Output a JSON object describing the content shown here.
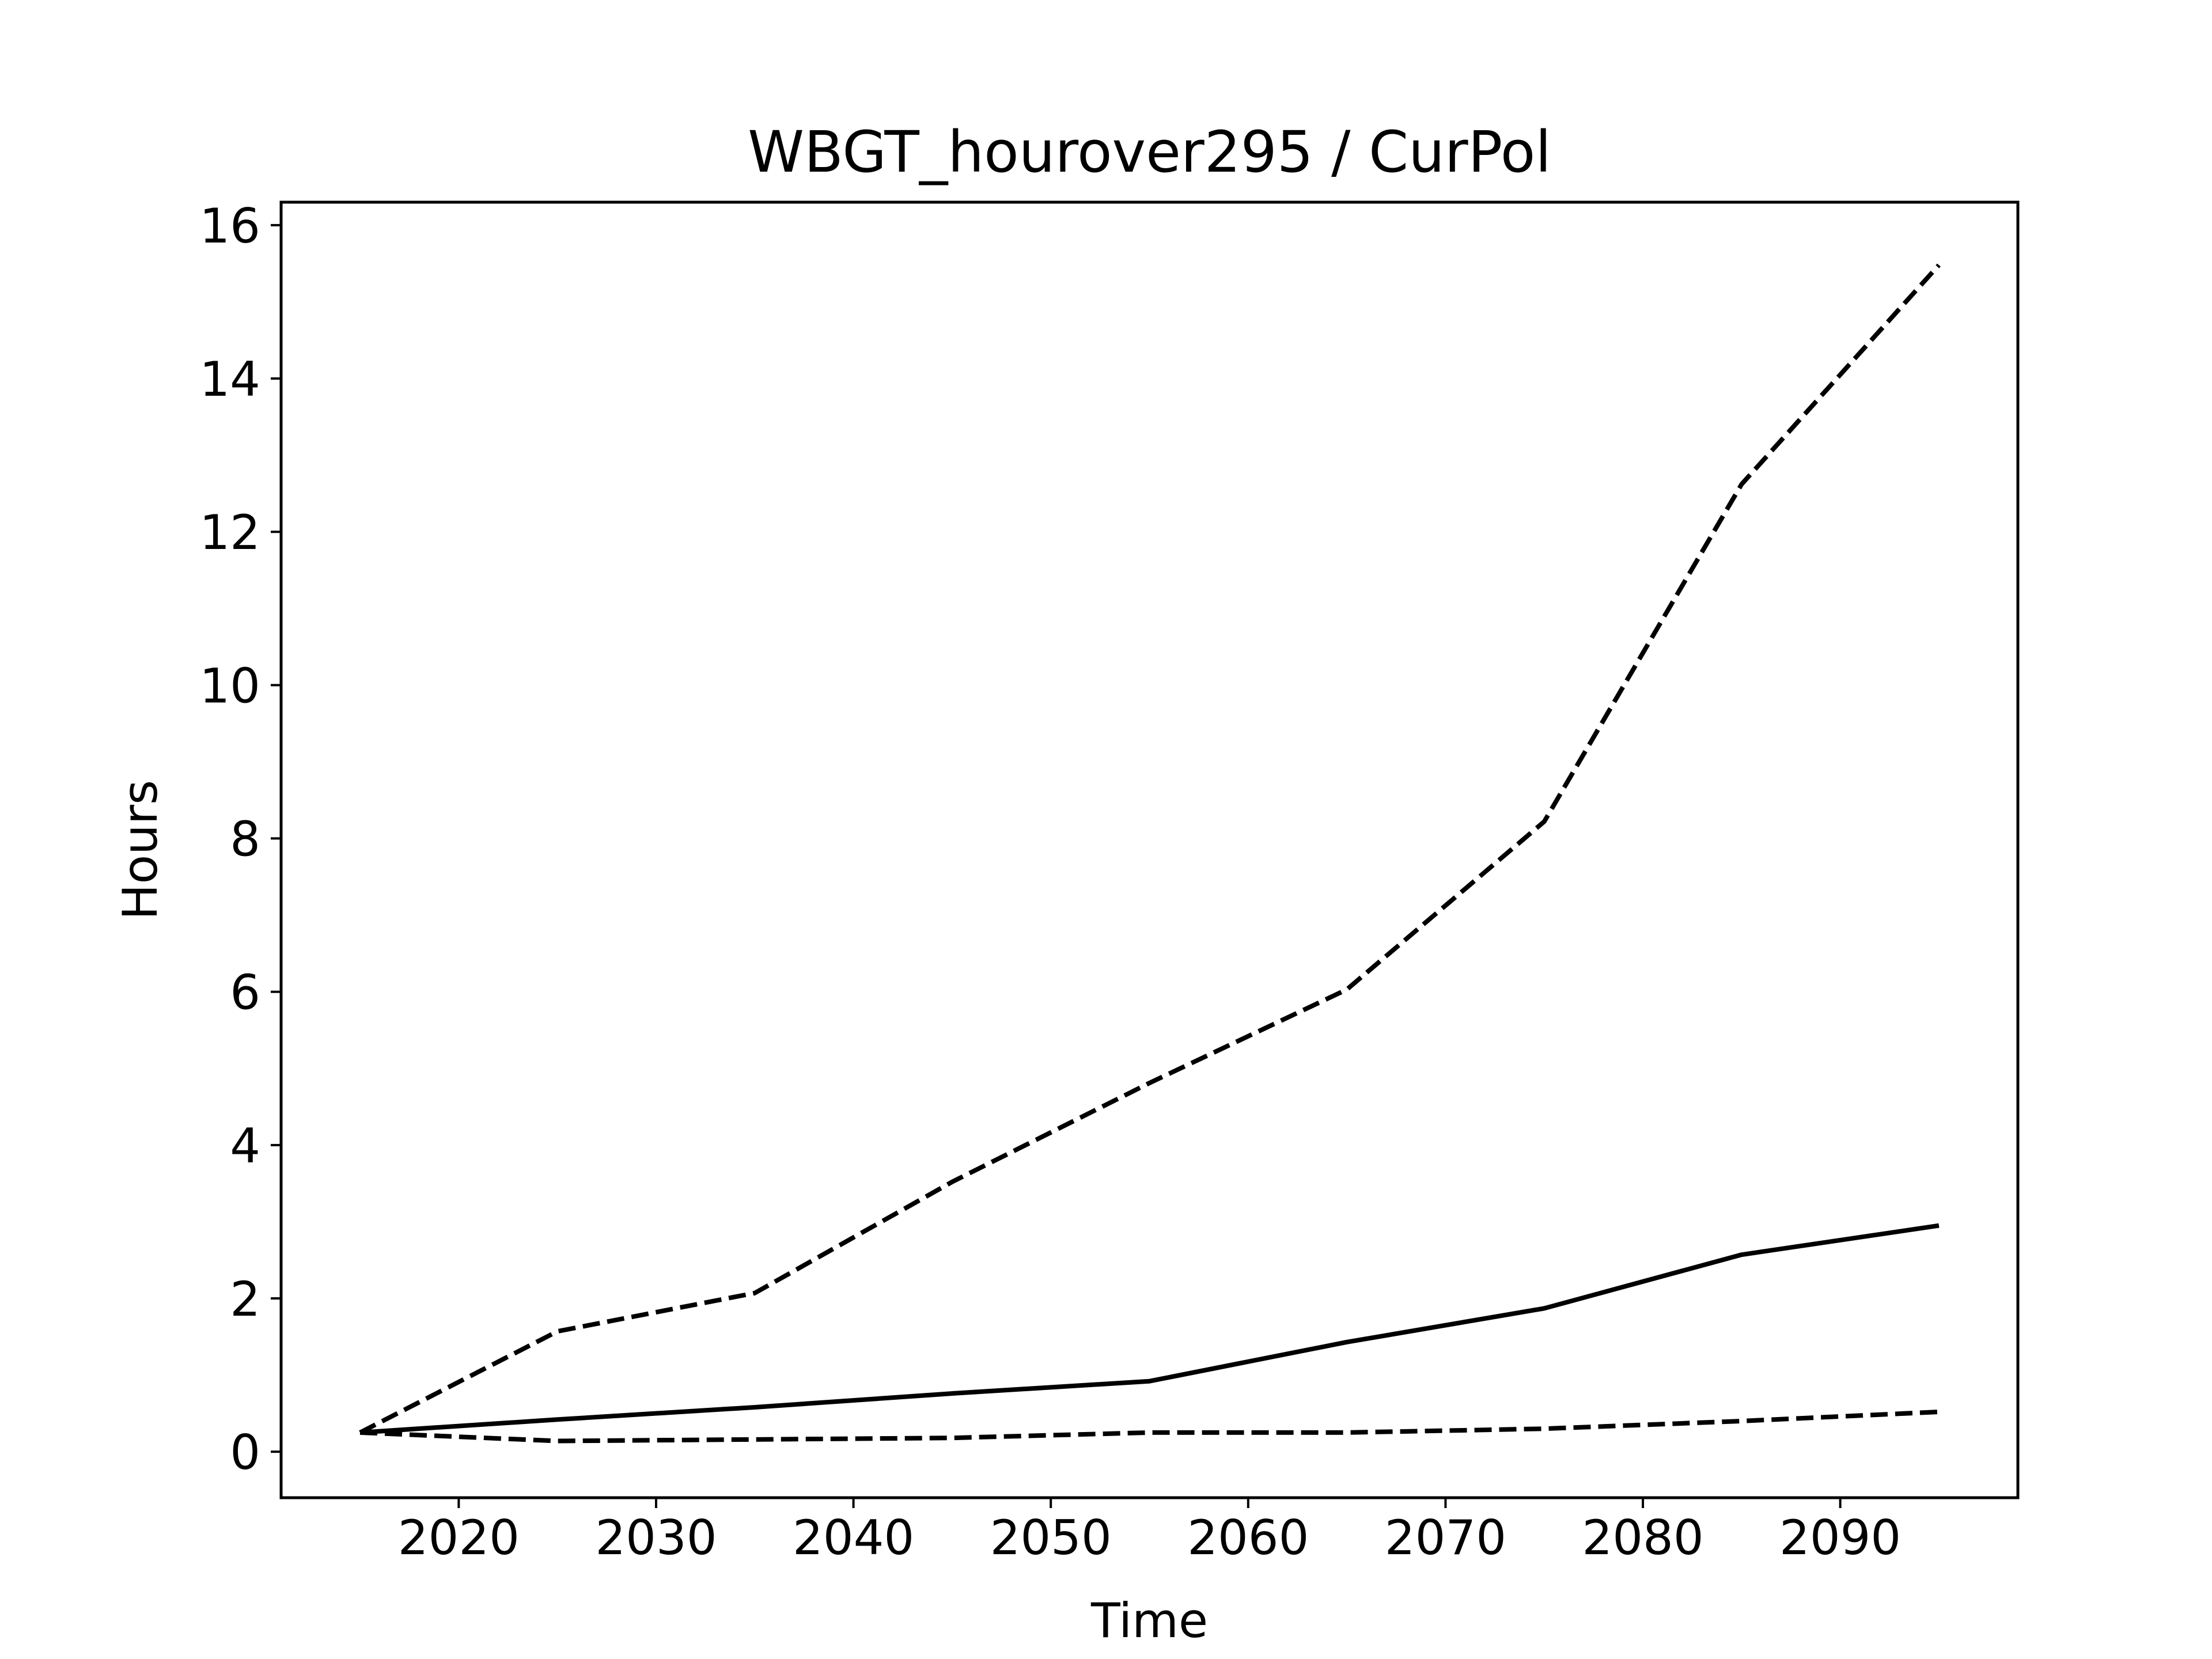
{
  "chart_data": {
    "type": "line",
    "title": "WBGT_hourover295 / CurPol",
    "xlabel": "Time",
    "ylabel": "Hours",
    "xlim": [
      2011,
      2099
    ],
    "ylim": [
      -0.6,
      16.3
    ],
    "x": [
      2015,
      2025,
      2035,
      2045,
      2055,
      2065,
      2075,
      2085,
      2095
    ],
    "x_ticks": [
      2020,
      2030,
      2040,
      2050,
      2060,
      2070,
      2080,
      2090
    ],
    "y_ticks": [
      0,
      2,
      4,
      6,
      8,
      10,
      12,
      14,
      16
    ],
    "grid": false,
    "legend": "none",
    "line_color": "#000000",
    "series": [
      {
        "style": "solid",
        "values": [
          0.25,
          0.42,
          0.58,
          0.76,
          0.92,
          1.43,
          1.87,
          2.57,
          2.95
        ]
      },
      {
        "style": "dashed",
        "values": [
          0.25,
          1.57,
          2.07,
          3.52,
          4.81,
          6.03,
          8.22,
          12.62,
          15.48
        ]
      },
      {
        "style": "dashed",
        "values": [
          0.25,
          0.14,
          0.16,
          0.18,
          0.25,
          0.25,
          0.3,
          0.4,
          0.52
        ]
      }
    ]
  }
}
